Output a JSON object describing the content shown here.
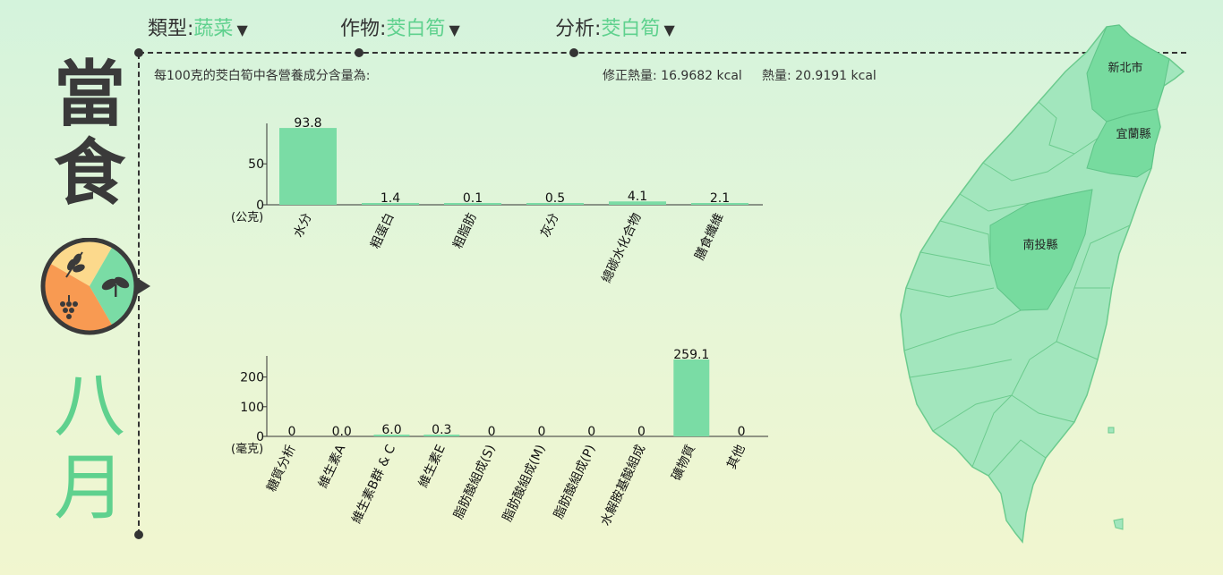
{
  "header": {
    "type_label": "類型:",
    "type_value": "蔬菜",
    "crop_label": "作物:",
    "crop_value": "茭白筍",
    "analysis_label": "分析:",
    "analysis_value": "茭白筍"
  },
  "title": {
    "line1": "當",
    "line2": "食",
    "month1": "八",
    "month2": "月"
  },
  "info": {
    "subtitle": "每100克的茭白筍中各營養成分含量為:",
    "energy_corrected": "修正熱量: 16.9682 kcal",
    "energy": "熱量: 20.9191 kcal"
  },
  "map": {
    "labels": [
      "新北市",
      "宜蘭縣",
      "南投縣"
    ]
  },
  "colors": {
    "accent": "#5fd18e",
    "bar": "#7adca5",
    "map_base": "#a2e6bd",
    "map_highlight": "#77db9f"
  },
  "chart_data": [
    {
      "type": "bar",
      "unit": "(公克)",
      "categories": [
        "水分",
        "粗蛋白",
        "粗脂肪",
        "灰分",
        "總碳水化合物",
        "膳食纖維"
      ],
      "values": [
        93.8,
        1.4,
        0.1,
        0.5,
        4.1,
        2.1
      ],
      "value_labels": [
        "93.8",
        "1.4",
        "0.1",
        "0.5",
        "4.1",
        "2.1"
      ],
      "yticks": [
        0,
        50
      ],
      "ylim": [
        0,
        95
      ]
    },
    {
      "type": "bar",
      "unit": "(毫克)",
      "categories": [
        "糖質分析",
        "維生素A",
        "維生素B群 & C",
        "維生素E",
        "脂肪酸組成(S)",
        "脂肪酸組成(M)",
        "脂肪酸組成(P)",
        "水解胺基酸組成",
        "礦物質",
        "其他"
      ],
      "values": [
        0,
        0.0,
        6.0,
        0.3,
        0,
        0,
        0,
        0,
        259.1,
        0
      ],
      "value_labels": [
        "0",
        "0.0",
        "6.0",
        "0.3",
        "0",
        "0",
        "0",
        "0",
        "259.1",
        "0"
      ],
      "yticks": [
        0,
        100,
        200
      ],
      "ylim": [
        0,
        259.1
      ]
    }
  ]
}
